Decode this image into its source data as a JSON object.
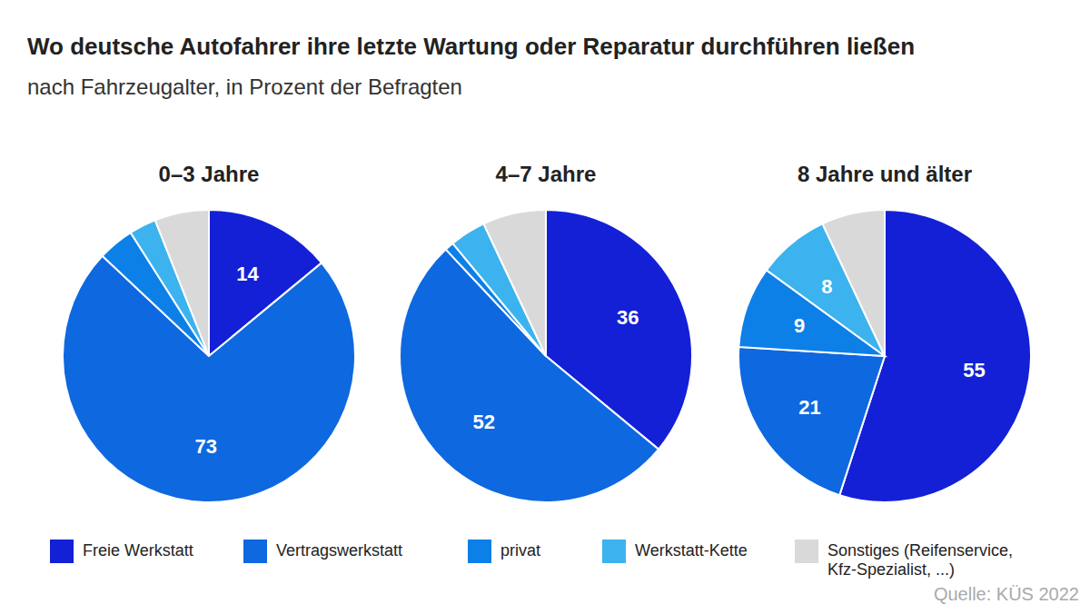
{
  "title": "Wo deutsche Autofahrer ihre letzte Wartung oder Reparatur durchführen ließen",
  "subtitle": "nach Fahrzeugalter, in Prozent der Befragten",
  "source": "Quelle: KÜS 2022",
  "legend": "bottom",
  "chart_data": [
    {
      "type": "pie",
      "title": "0–3 Jahre",
      "categories": [
        "Freie Werkstatt",
        "Vertragswerkstatt",
        "privat",
        "Werkstatt-Kette",
        "Sonstiges (Reifenservice, Kfz-Spezialist, ...)"
      ],
      "values": [
        14,
        73,
        4,
        3,
        6
      ],
      "value_labels": [
        "14",
        "73",
        null,
        null,
        null
      ],
      "colors": [
        "#1420d6",
        "#0e68e0",
        "#0d80e8",
        "#3cb3ee",
        "#d9d9d9"
      ],
      "data_labels": true
    },
    {
      "type": "pie",
      "title": "4–7 Jahre",
      "categories": [
        "Freie Werkstatt",
        "Vertragswerkstatt",
        "privat",
        "Werkstatt-Kette",
        "Sonstiges (Reifenservice, Kfz-Spezialist, ...)"
      ],
      "values": [
        36,
        52,
        1,
        4,
        7
      ],
      "value_labels": [
        "36",
        "52",
        null,
        null,
        null
      ],
      "colors": [
        "#1420d6",
        "#0e68e0",
        "#0d80e8",
        "#3cb3ee",
        "#d9d9d9"
      ],
      "data_labels": true
    },
    {
      "type": "pie",
      "title": "8 Jahre und älter",
      "categories": [
        "Freie Werkstatt",
        "Vertragswerkstatt",
        "privat",
        "Werkstatt-Kette",
        "Sonstiges (Reifenservice, Kfz-Spezialist, ...)"
      ],
      "values": [
        55,
        21,
        9,
        8,
        7
      ],
      "value_labels": [
        "55",
        "21",
        "9",
        "8",
        null
      ],
      "colors": [
        "#1420d6",
        "#0e68e0",
        "#0d80e8",
        "#3cb3ee",
        "#d9d9d9"
      ],
      "data_labels": true
    }
  ]
}
